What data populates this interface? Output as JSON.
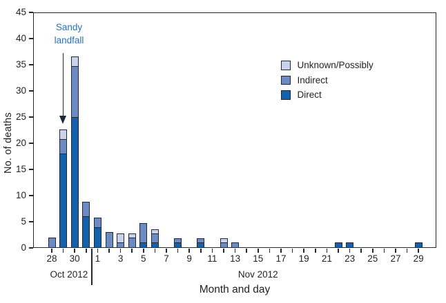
{
  "figure": {
    "ylabel": "No. of deaths",
    "xlabel": "Month and day",
    "annotation": {
      "line1": "Sandy",
      "line2": "landfall"
    },
    "text_color": "#231f20",
    "outline_color": "#20273a",
    "annotation_color": "#2d72b8"
  },
  "legend": {
    "position": "upper-right-inside",
    "items": [
      {
        "label": "Unknown/Possibly",
        "color": "#c9d2e8"
      },
      {
        "label": "Indirect",
        "color": "#6d8bc3"
      },
      {
        "label": "Direct",
        "color": "#1461ab"
      }
    ]
  },
  "chart_data": {
    "type": "bar",
    "stacked": true,
    "title": "",
    "xlabel": "Month and day",
    "ylabel": "No. of deaths",
    "ylim": [
      0,
      45
    ],
    "ytick_step": 5,
    "grid": false,
    "categories": [
      "Oct 28",
      "Oct 29",
      "Oct 30",
      "Oct 31",
      "Nov 1",
      "Nov 2",
      "Nov 3",
      "Nov 4",
      "Nov 5",
      "Nov 6",
      "Nov 7",
      "Nov 8",
      "Nov 9",
      "Nov 10",
      "Nov 11",
      "Nov 12",
      "Nov 13",
      "Nov 14",
      "Nov 15",
      "Nov 16",
      "Nov 17",
      "Nov 18",
      "Nov 19",
      "Nov 20",
      "Nov 21",
      "Nov 22",
      "Nov 23",
      "Nov 24",
      "Nov 25",
      "Nov 26",
      "Nov 27",
      "Nov 28",
      "Nov 29"
    ],
    "tick_labels": [
      "28",
      "",
      "30",
      "",
      "1",
      "",
      "3",
      "",
      "5",
      "",
      "7",
      "",
      "9",
      "",
      "11",
      "",
      "13",
      "",
      "15",
      "",
      "17",
      "",
      "19",
      "",
      "21",
      "",
      "23",
      "",
      "25",
      "",
      "27",
      "",
      "29"
    ],
    "month_groups": [
      {
        "label": "Oct 2012",
        "from": 0,
        "to": 3
      },
      {
        "label": "Nov 2012",
        "from": 4,
        "to": 32
      }
    ],
    "series": [
      {
        "name": "Direct",
        "color": "#1461ab",
        "values": [
          0,
          18,
          25,
          6,
          4,
          0,
          0,
          0,
          1,
          1,
          0,
          1,
          0,
          1,
          0,
          0,
          0,
          0,
          0,
          0,
          0,
          0,
          0,
          0,
          0,
          1,
          1,
          0,
          0,
          0,
          0,
          0,
          1
        ]
      },
      {
        "name": "Indirect",
        "color": "#6d8bc3",
        "values": [
          2,
          3,
          10,
          3,
          2,
          3,
          1,
          2,
          4,
          2,
          0,
          1,
          0,
          1,
          0,
          1,
          1,
          0,
          0,
          0,
          0,
          0,
          0,
          0,
          0,
          0,
          0,
          0,
          0,
          0,
          0,
          0,
          0
        ]
      },
      {
        "name": "Unknown/Possibly",
        "color": "#c9d2e8",
        "values": [
          0,
          2,
          2,
          0,
          0,
          0,
          2,
          1,
          0,
          1,
          0,
          0,
          0,
          0,
          0,
          1,
          0,
          0,
          0,
          0,
          0,
          0,
          0,
          0,
          0,
          0,
          0,
          0,
          0,
          0,
          0,
          0,
          0
        ]
      }
    ],
    "annotation": {
      "text": "Sandy landfall",
      "points_to": "Oct 29",
      "color": "#2d72b8"
    }
  }
}
